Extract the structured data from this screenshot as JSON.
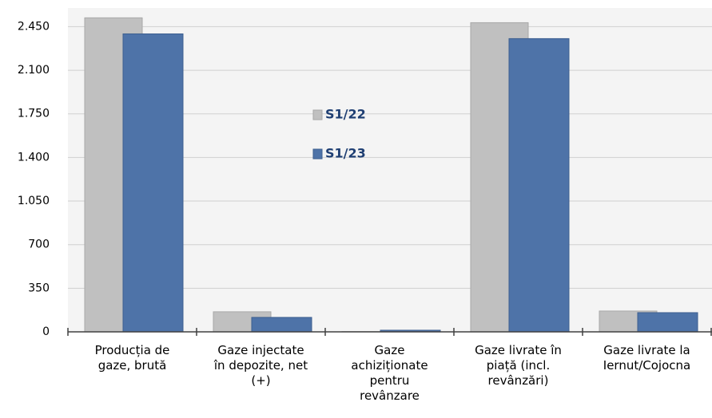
{
  "chart_data": {
    "type": "bar",
    "categories": [
      "Producția de\ngaze, brută",
      "Gaze injectate\nîn depozite, net\n(+)",
      "Gaze\nachiziționate\npentru\nrevânzare",
      "Gaze livrate în\npiață (incl.\nrevânzări)",
      "Gaze livrate la\nIernut/Cojocna"
    ],
    "series": [
      {
        "name": "S1/22",
        "color": "#c0c0c0",
        "values": [
          2521,
          161,
          2,
          2482,
          167
        ]
      },
      {
        "name": "S1/23",
        "color": "#4e73a8",
        "values": [
          2392,
          116,
          13,
          2354,
          154
        ]
      }
    ],
    "ylim": [
      0,
      2600
    ],
    "yticks": [
      0,
      350,
      700,
      {
        "value": 1050,
        "label": "1.050"
      },
      {
        "value": 1400,
        "label": "1.400"
      },
      {
        "value": 1750,
        "label": "1.750"
      },
      {
        "value": 2100,
        "label": "2.100"
      },
      {
        "value": 2450,
        "label": "2.450"
      }
    ],
    "grid": true
  }
}
